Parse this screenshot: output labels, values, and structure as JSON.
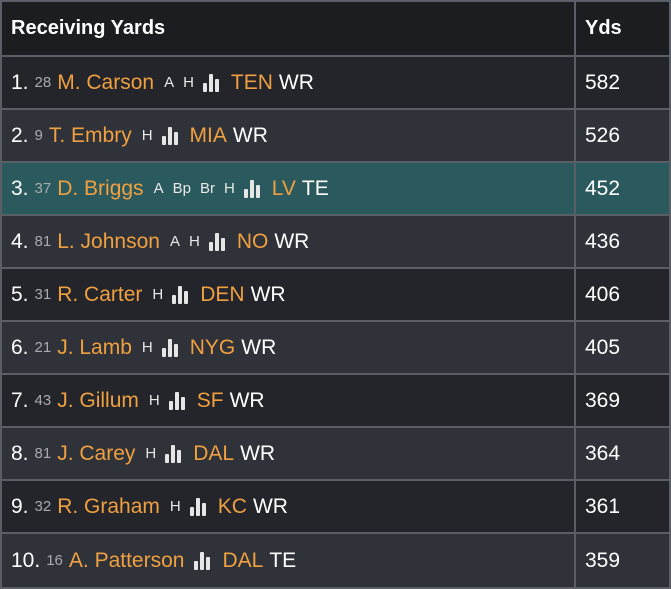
{
  "header": {
    "title": "Receiving Yards",
    "yds_label": "Yds"
  },
  "icons": {
    "stats": "bar-chart-icon"
  },
  "colors": {
    "player": "#f0a040",
    "team": "#f0a040",
    "highlight_row": "#2a5a5e"
  },
  "rows": [
    {
      "rank": "1.",
      "num": "28",
      "name": "M. Carson",
      "tags": [
        "A",
        "H"
      ],
      "team": "TEN",
      "pos": "WR",
      "yds": "582"
    },
    {
      "rank": "2.",
      "num": "9",
      "name": "T. Embry",
      "tags": [
        "H"
      ],
      "team": "MIA",
      "pos": "WR",
      "yds": "526"
    },
    {
      "rank": "3.",
      "num": "37",
      "name": "D. Briggs",
      "tags": [
        "A",
        "Bp",
        "Br",
        "H"
      ],
      "team": "LV",
      "pos": "TE",
      "yds": "452"
    },
    {
      "rank": "4.",
      "num": "81",
      "name": "L. Johnson",
      "tags": [
        "A",
        "H"
      ],
      "team": "NO",
      "pos": "WR",
      "yds": "436"
    },
    {
      "rank": "5.",
      "num": "31",
      "name": "R. Carter",
      "tags": [
        "H"
      ],
      "team": "DEN",
      "pos": "WR",
      "yds": "406"
    },
    {
      "rank": "6.",
      "num": "21",
      "name": "J. Lamb",
      "tags": [
        "H"
      ],
      "team": "NYG",
      "pos": "WR",
      "yds": "405"
    },
    {
      "rank": "7.",
      "num": "43",
      "name": "J. Gillum",
      "tags": [
        "H"
      ],
      "team": "SF",
      "pos": "WR",
      "yds": "369"
    },
    {
      "rank": "8.",
      "num": "81",
      "name": "J. Carey",
      "tags": [
        "H"
      ],
      "team": "DAL",
      "pos": "WR",
      "yds": "364"
    },
    {
      "rank": "9.",
      "num": "32",
      "name": "R. Graham",
      "tags": [
        "H"
      ],
      "team": "KC",
      "pos": "WR",
      "yds": "361"
    },
    {
      "rank": "10.",
      "num": "16",
      "name": "A. Patterson",
      "tags": [],
      "team": "DAL",
      "pos": "TE",
      "yds": "359"
    }
  ]
}
